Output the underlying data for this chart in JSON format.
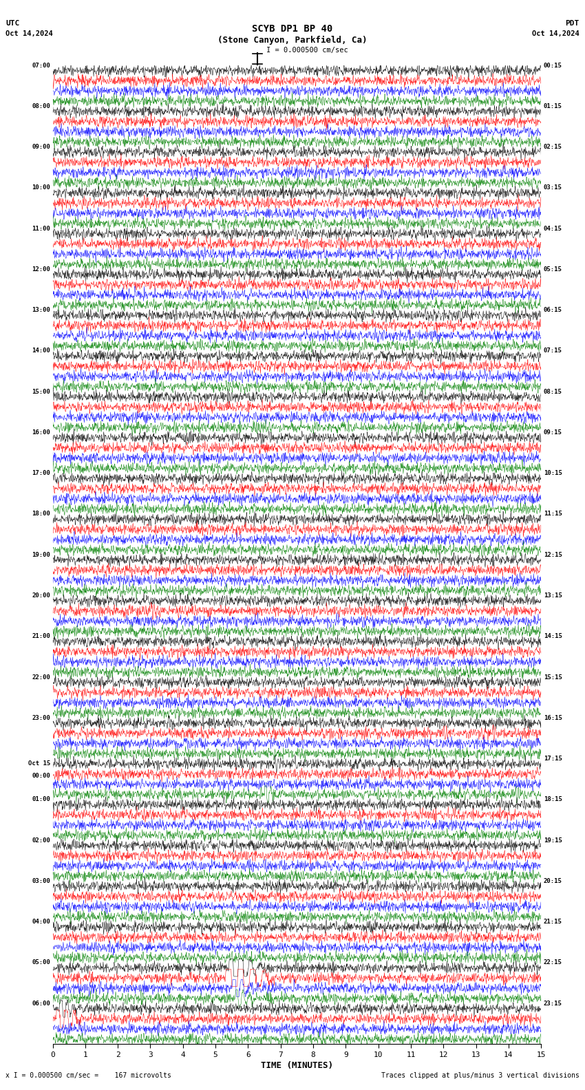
{
  "title_line1": "SCYB DP1 BP 40",
  "title_line2": "(Stone Canyon, Parkfield, Ca)",
  "scale_text": "I = 0.000500 cm/sec",
  "utc_label": "UTC",
  "pdt_label": "PDT",
  "date_left": "Oct 14,2024",
  "date_right": "Oct 14,2024",
  "bottom_left": "x I = 0.000500 cm/sec =    167 microvolts",
  "bottom_right": "Traces clipped at plus/minus 3 vertical divisions",
  "xlabel": "TIME (MINUTES)",
  "bg_color": "#ffffff",
  "trace_colors": [
    "#000000",
    "#ff0000",
    "#0000ff",
    "#008000"
  ],
  "left_times": [
    "07:00",
    "08:00",
    "09:00",
    "10:00",
    "11:00",
    "12:00",
    "13:00",
    "14:00",
    "15:00",
    "16:00",
    "17:00",
    "18:00",
    "19:00",
    "20:00",
    "21:00",
    "22:00",
    "23:00",
    "Oct 15\n00:00",
    "01:00",
    "02:00",
    "03:00",
    "04:00",
    "05:00",
    "06:00"
  ],
  "right_times": [
    "00:15",
    "01:15",
    "02:15",
    "03:15",
    "04:15",
    "05:15",
    "06:15",
    "07:15",
    "08:15",
    "09:15",
    "10:15",
    "11:15",
    "12:15",
    "13:15",
    "14:15",
    "15:15",
    "16:15",
    "17:15",
    "18:15",
    "19:15",
    "20:15",
    "21:15",
    "22:15",
    "23:15"
  ],
  "n_rows": 24,
  "traces_per_row": 4,
  "minutes": 15,
  "fig_width": 8.5,
  "fig_height": 15.84,
  "noise_amp": 0.025,
  "trace_lw": 0.35
}
